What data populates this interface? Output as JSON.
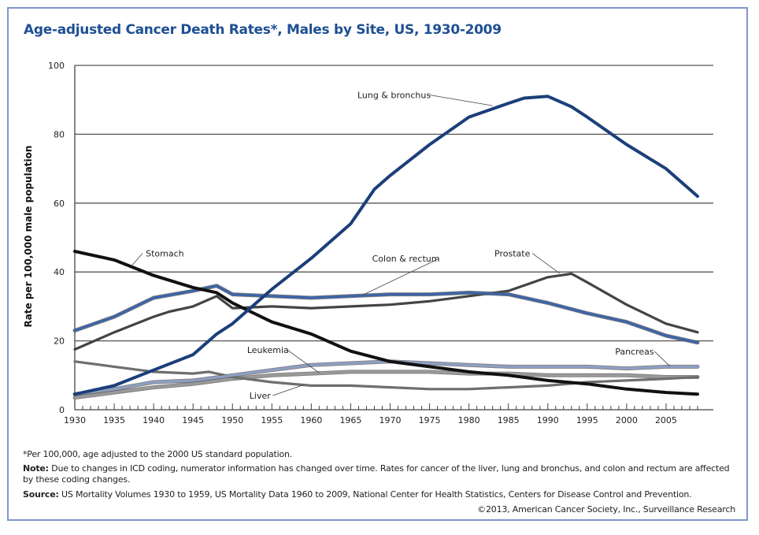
{
  "chart_data": {
    "type": "line",
    "title": "Age-adjusted Cancer Death Rates*, Males by Site, US, 1930-2009",
    "xlabel": "",
    "ylabel": "Rate per 100,000 male population",
    "xlim": [
      1930,
      2009
    ],
    "ylim": [
      0,
      100
    ],
    "x_ticks": [
      1930,
      1935,
      1940,
      1945,
      1950,
      1955,
      1960,
      1965,
      1970,
      1975,
      1980,
      1985,
      1990,
      1995,
      2000,
      2005
    ],
    "y_ticks": [
      0,
      20,
      40,
      60,
      80,
      100
    ],
    "grid": "horizontal",
    "legend": "inline-labels",
    "series": [
      {
        "name": "Lung & bronchus",
        "color": "#1b3f7a",
        "x": [
          1930,
          1935,
          1940,
          1945,
          1948,
          1950,
          1955,
          1960,
          1965,
          1968,
          1970,
          1975,
          1980,
          1985,
          1987,
          1990,
          1993,
          1995,
          2000,
          2005,
          2009
        ],
        "values": [
          4.5,
          7,
          11.5,
          16,
          22,
          25,
          35,
          44,
          54,
          64,
          68,
          77,
          85,
          89,
          90.5,
          91,
          88,
          85,
          77,
          70,
          62
        ]
      },
      {
        "name": "Stomach",
        "color": "#111111",
        "x": [
          1930,
          1935,
          1940,
          1945,
          1948,
          1950,
          1955,
          1960,
          1965,
          1970,
          1975,
          1980,
          1985,
          1990,
          1995,
          2000,
          2005,
          2009
        ],
        "values": [
          46,
          43.5,
          39,
          35.5,
          34,
          31,
          25.5,
          22,
          17,
          14,
          12.5,
          11,
          10,
          8.5,
          7.5,
          6,
          5,
          4.5
        ]
      },
      {
        "name": "Colon & rectum",
        "color": "#3d64a8",
        "x": [
          1930,
          1935,
          1940,
          1945,
          1948,
          1950,
          1955,
          1960,
          1965,
          1970,
          1975,
          1980,
          1985,
          1990,
          1995,
          2000,
          2005,
          2009
        ],
        "values": [
          23,
          27,
          32.5,
          34.5,
          36,
          33.5,
          33,
          32.5,
          33,
          33.5,
          33.5,
          34,
          33.5,
          31,
          28,
          25.5,
          21.5,
          19.5
        ]
      },
      {
        "name": "Prostate",
        "color": "#444444",
        "x": [
          1930,
          1935,
          1940,
          1942,
          1945,
          1948,
          1950,
          1955,
          1960,
          1965,
          1970,
          1975,
          1980,
          1985,
          1990,
          1993,
          1995,
          2000,
          2005,
          2009
        ],
        "values": [
          17.5,
          22.5,
          27,
          28.5,
          30,
          33,
          29.5,
          30,
          29.5,
          30,
          30.5,
          31.5,
          33,
          34.5,
          38.5,
          39.5,
          37,
          30.5,
          25,
          22.5
        ]
      },
      {
        "name": "Pancreas",
        "color": "#8e9fc4",
        "x": [
          1930,
          1935,
          1940,
          1945,
          1950,
          1955,
          1960,
          1965,
          1970,
          1975,
          1980,
          1985,
          1990,
          1995,
          2000,
          2005,
          2009
        ],
        "values": [
          4.5,
          6,
          8,
          8.5,
          10,
          11.5,
          13,
          13.5,
          14,
          13.5,
          13,
          12.5,
          12.5,
          12.5,
          12,
          12.5,
          12.5
        ]
      },
      {
        "name": "Leukemia",
        "color": "#9a9a9a",
        "x": [
          1930,
          1935,
          1940,
          1945,
          1950,
          1955,
          1960,
          1965,
          1970,
          1975,
          1980,
          1985,
          1990,
          1995,
          2000,
          2005,
          2009
        ],
        "values": [
          3.5,
          5,
          6.5,
          7.5,
          9,
          10,
          10.5,
          11,
          11,
          11,
          10.5,
          10.5,
          10,
          10,
          10,
          9.5,
          9.5
        ]
      },
      {
        "name": "Liver",
        "color": "#6e6e6e",
        "x": [
          1930,
          1935,
          1940,
          1945,
          1947,
          1950,
          1955,
          1960,
          1965,
          1970,
          1975,
          1980,
          1985,
          1990,
          1995,
          2000,
          2005,
          2009
        ],
        "values": [
          14,
          12.5,
          11,
          10.5,
          11,
          9.5,
          8,
          7,
          7,
          6.5,
          6,
          6,
          6.5,
          7,
          8,
          8.5,
          9,
          9.5
        ]
      }
    ],
    "annotations": [
      {
        "label": "Lung & bronchus",
        "series": "Lung & bronchus",
        "x": 1983,
        "y": 88.5
      },
      {
        "label": "Stomach",
        "series": "Stomach",
        "x": 1937,
        "y": 42
      },
      {
        "label": "Colon & rectum",
        "series": "Colon & rectum",
        "x": 1966,
        "y": 33
      },
      {
        "label": "Prostate",
        "series": "Prostate",
        "x": 1991,
        "y": 39.5
      },
      {
        "label": "Pancreas",
        "series": "Pancreas",
        "x": 2003,
        "y": 12
      },
      {
        "label": "Leukemia",
        "series": "Leukemia",
        "x": 1964,
        "y": 10.5
      },
      {
        "label": "Liver",
        "series": "Liver",
        "x": 1957,
        "y": 7.5
      }
    ]
  },
  "footnotes": {
    "asterisk": "*Per 100,000, age adjusted to the 2000 US standard population.",
    "note_label": "Note:",
    "note_text": " Due to changes in ICD coding, numerator information has changed over time. Rates for cancer of the liver, lung and bronchus, and colon and rectum are affected by these coding changes.",
    "source_label": "Source:",
    "source_text": " US Mortality Volumes 1930 to 1959, US Mortality Data 1960 to 2009, National Center for Health Statistics, Centers for Disease Control and Prevention.",
    "copyright": "©2013, American Cancer Society, Inc., Surveillance Research"
  }
}
